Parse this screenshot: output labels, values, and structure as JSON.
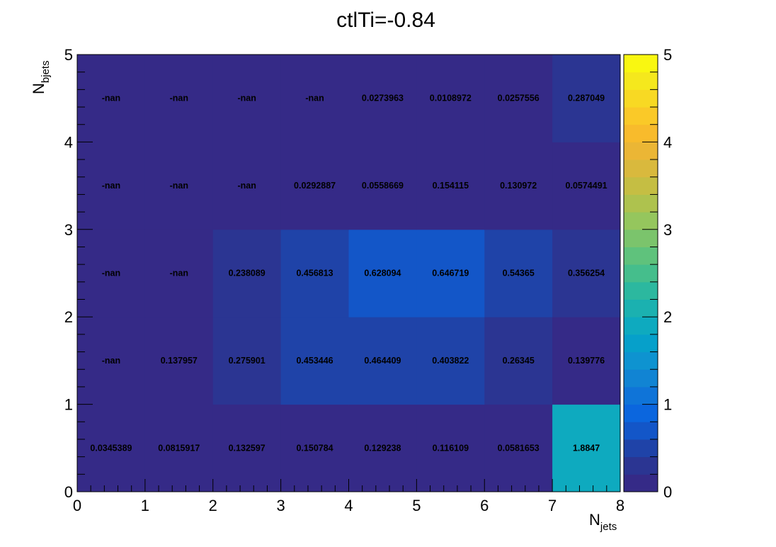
{
  "chart_data": {
    "type": "heatmap",
    "title": "ctlTi=-0.84",
    "xlabel": {
      "main": "N",
      "sub": "jets"
    },
    "ylabel": {
      "main": "N",
      "sub": "bjets"
    },
    "xlim": [
      0,
      8
    ],
    "ylim": [
      0,
      5
    ],
    "zlim": [
      0,
      5
    ],
    "x_ticks": [
      "0",
      "1",
      "2",
      "3",
      "4",
      "5",
      "6",
      "7",
      "8"
    ],
    "y_ticks": [
      "0",
      "1",
      "2",
      "3",
      "4",
      "5"
    ],
    "z_ticks": [
      "0",
      "1",
      "2",
      "3",
      "4",
      "5"
    ],
    "palette": [
      "#352a87",
      "#2b3592",
      "#1f43a8",
      "#1356c8",
      "#0b66de",
      "#0f74d8",
      "#1184d3",
      "#0e93d0",
      "#06a0ca",
      "#0eaabf",
      "#1bb1b0",
      "#2cb89f",
      "#45be8c",
      "#5fc27c",
      "#7bc46c",
      "#95c65d",
      "#aec24e",
      "#c5be43",
      "#d9b93d",
      "#ebb635",
      "#f8bb2c",
      "#fac928",
      "#f8d923",
      "#f5e81d",
      "#f9f711"
    ],
    "grid": false,
    "rows": [
      {
        "y_bin": [
          0,
          1
        ],
        "labels": [
          "0.0345389",
          "0.0815917",
          "0.132597",
          "0.150784",
          "0.129238",
          "0.116109",
          "0.0581653",
          "1.8847"
        ],
        "values": [
          0.0345389,
          0.0815917,
          0.132597,
          0.150784,
          0.129238,
          0.116109,
          0.0581653,
          1.8847
        ]
      },
      {
        "y_bin": [
          1,
          2
        ],
        "labels": [
          "-nan",
          "0.137957",
          "0.275901",
          "0.453446",
          "0.464409",
          "0.403822",
          "0.26345",
          "0.139776"
        ],
        "values": [
          null,
          0.137957,
          0.275901,
          0.453446,
          0.464409,
          0.403822,
          0.26345,
          0.139776
        ]
      },
      {
        "y_bin": [
          2,
          3
        ],
        "labels": [
          "-nan",
          "-nan",
          "0.238089",
          "0.456813",
          "0.628094",
          "0.646719",
          "0.54365",
          "0.356254"
        ],
        "values": [
          null,
          null,
          0.238089,
          0.456813,
          0.628094,
          0.646719,
          0.54365,
          0.356254
        ]
      },
      {
        "y_bin": [
          3,
          4
        ],
        "labels": [
          "-nan",
          "-nan",
          "-nan",
          "0.0292887",
          "0.0558669",
          "0.154115",
          "0.130972",
          "0.0574491"
        ],
        "values": [
          null,
          null,
          null,
          0.0292887,
          0.0558669,
          0.154115,
          0.130972,
          0.0574491
        ]
      },
      {
        "y_bin": [
          4,
          5
        ],
        "labels": [
          "-nan",
          "-nan",
          "-nan",
          "-nan",
          "0.0273963",
          "0.0108972",
          "0.0257556",
          "0.287049"
        ],
        "values": [
          null,
          null,
          null,
          null,
          0.0273963,
          0.0108972,
          0.0257556,
          0.287049
        ]
      }
    ]
  }
}
